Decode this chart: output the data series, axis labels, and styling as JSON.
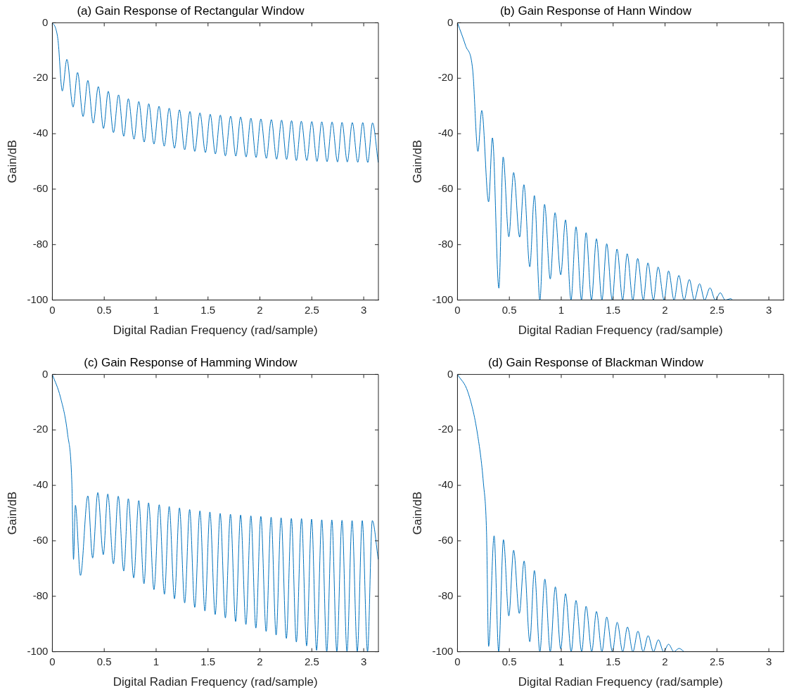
{
  "chart_data": [
    {
      "type": "line",
      "title": "(a) Gain Response of Rectangular Window",
      "xlabel": "Digital Radian Frequency (rad/sample)",
      "ylabel": "Gain/dB",
      "xlim": [
        0,
        3.1416
      ],
      "ylim": [
        -100,
        0
      ],
      "xticks": [
        0,
        0.5,
        1,
        1.5,
        2,
        2.5,
        3
      ],
      "yticks": [
        -100,
        -80,
        -60,
        -40,
        -20,
        0
      ],
      "x": [
        0,
        0.032,
        0.055,
        0.096,
        0.14,
        0.2,
        0.243,
        0.296,
        0.342,
        0.394,
        0.443,
        0.493,
        0.539,
        0.589,
        0.638,
        0.688,
        0.732,
        0.787,
        0.833,
        0.885,
        0.929,
        0.979,
        1.028,
        1.078,
        1.126,
        1.177,
        1.225,
        1.275,
        1.326,
        1.372,
        1.422,
        1.475,
        1.521,
        1.571,
        1.619,
        1.667,
        1.718,
        1.768,
        1.814,
        1.867,
        1.913,
        1.963,
        2.009,
        2.062,
        2.11,
        2.161,
        2.209,
        2.257,
        2.305,
        2.351,
        2.399,
        2.452,
        2.5,
        2.55,
        2.596,
        2.647,
        2.695,
        2.748,
        2.791,
        2.842,
        2.89,
        2.943,
        2.991,
        3.039,
        3.085,
        3.14
      ],
      "series": [
        {
          "color": "#0072bd",
          "values": [
            0,
            -2,
            -6.4,
            -24.6,
            -13.2,
            -30.4,
            -17.9,
            -33.8,
            -20.8,
            -36.2,
            -23.0,
            -38.1,
            -24.7,
            -39.6,
            -26.0,
            -40.9,
            -27.4,
            -42.0,
            -28.4,
            -43.0,
            -29.2,
            -43.7,
            -30.1,
            -44.5,
            -30.8,
            -45.2,
            -31.4,
            -45.8,
            -32.0,
            -46.4,
            -32.5,
            -46.8,
            -33.0,
            -47.3,
            -33.3,
            -48.0,
            -33.7,
            -48.1,
            -34.0,
            -48.4,
            -34.4,
            -48.6,
            -34.7,
            -48.9,
            -34.9,
            -49.2,
            -35.1,
            -49.3,
            -35.3,
            -49.7,
            -35.5,
            -49.7,
            -35.6,
            -50.0,
            -35.7,
            -50.1,
            -35.8,
            -50.2,
            -35.9,
            -50.2,
            -36.0,
            -50.3,
            -36.0,
            -50.4,
            -36.1,
            -50.4
          ]
        }
      ]
    },
    {
      "type": "line",
      "title": "(b) Gain Response of Hann Window",
      "xlabel": "Digital Radian Frequency (rad/sample)",
      "ylabel": "Gain/dB",
      "xlim": [
        0,
        3.1416
      ],
      "ylim": [
        -100,
        0
      ],
      "xticks": [
        0,
        0.5,
        1,
        1.5,
        2,
        2.5,
        3
      ],
      "yticks": [
        -100,
        -80,
        -60,
        -40,
        -20,
        0
      ],
      "x": [
        0,
        0.078,
        0.147,
        0.197,
        0.234,
        0.3,
        0.337,
        0.399,
        0.44,
        0.495,
        0.541,
        0.599,
        0.64,
        0.697,
        0.741,
        0.794,
        0.839,
        0.894,
        0.94,
        0.995,
        1.041,
        1.094,
        1.142,
        1.195,
        1.239,
        1.291,
        1.339,
        1.392,
        1.438,
        1.491,
        1.537,
        1.592,
        1.635,
        1.69,
        1.736,
        1.791,
        1.835,
        1.888,
        1.933,
        1.991,
        2.034,
        2.087,
        2.133,
        2.183,
        2.234,
        2.282,
        2.333,
        2.381,
        2.433,
        2.484,
        2.532,
        2.58,
        2.635,
        2.651
      ],
      "series": [
        {
          "color": "#0072bd",
          "values": [
            0,
            -8.2,
            -17.1,
            -46.4,
            -31.6,
            -64.6,
            -41.5,
            -95.7,
            -48.4,
            -77.2,
            -54.0,
            -77.3,
            -58.4,
            -88.0,
            -62.3,
            -100,
            -65.5,
            -92.4,
            -68.5,
            -90.9,
            -71.1,
            -100,
            -73.6,
            -100,
            -75.7,
            -100,
            -77.9,
            -100,
            -79.7,
            -100,
            -81.6,
            -100,
            -83.3,
            -100,
            -85.0,
            -100,
            -86.6,
            -100,
            -88.1,
            -100,
            -89.5,
            -100,
            -91.1,
            -100,
            -92.6,
            -100,
            -94.1,
            -100,
            -95.6,
            -100,
            -97.4,
            -100,
            -99.5,
            -100
          ]
        }
      ]
    },
    {
      "type": "line",
      "title": "(c) Gain Response of Hamming Window",
      "xlabel": "Digital Radian Frequency (rad/sample)",
      "ylabel": "Gain/dB",
      "xlim": [
        0,
        3.1416
      ],
      "ylim": [
        -100,
        0
      ],
      "xticks": [
        0,
        0.5,
        1,
        1.5,
        2,
        2.5,
        3
      ],
      "yticks": [
        -100,
        -80,
        -60,
        -40,
        -20,
        0
      ],
      "x": [
        0,
        0.078,
        0.147,
        0.188,
        0.204,
        0.222,
        0.271,
        0.342,
        0.388,
        0.438,
        0.491,
        0.534,
        0.589,
        0.635,
        0.688,
        0.732,
        0.784,
        0.833,
        0.883,
        0.927,
        0.979,
        1.03,
        1.08,
        1.126,
        1.177,
        1.225,
        1.275,
        1.323,
        1.372,
        1.422,
        1.47,
        1.518,
        1.569,
        1.617,
        1.667,
        1.716,
        1.766,
        1.814,
        1.865,
        1.913,
        1.961,
        2.009,
        2.06,
        2.108,
        2.156,
        2.204,
        2.255,
        2.303,
        2.351,
        2.401,
        2.45,
        2.498,
        2.546,
        2.596,
        2.644,
        2.693,
        2.741,
        2.791,
        2.839,
        2.888,
        2.938,
        2.986,
        3.037,
        3.083,
        3.14
      ],
      "series": [
        {
          "color": "#0072bd",
          "values": [
            0,
            -8.2,
            -21.5,
            -39.2,
            -66.7,
            -47.2,
            -72.5,
            -43.8,
            -66.2,
            -42.6,
            -65.0,
            -43.1,
            -68.3,
            -43.9,
            -70.9,
            -44.8,
            -73.4,
            -45.5,
            -75.5,
            -46.3,
            -77.6,
            -47.0,
            -79.3,
            -47.6,
            -80.9,
            -48.1,
            -82.4,
            -48.7,
            -84.0,
            -49.2,
            -85.3,
            -49.6,
            -86.6,
            -50.1,
            -87.8,
            -50.4,
            -89.1,
            -50.7,
            -90.2,
            -51.0,
            -91.5,
            -51.2,
            -92.7,
            -51.5,
            -94.0,
            -51.7,
            -95.2,
            -51.9,
            -96.5,
            -52.0,
            -97.9,
            -52.2,
            -99.5,
            -52.4,
            -100,
            -52.5,
            -100,
            -52.6,
            -100,
            -52.7,
            -100,
            -52.7,
            -100,
            -52.7,
            -66.7
          ]
        }
      ]
    },
    {
      "type": "line",
      "title": "(d) Gain Response of Blackman Window",
      "xlabel": "Digital Radian Frequency (rad/sample)",
      "ylabel": "Gain/dB",
      "xlim": [
        0,
        3.1416
      ],
      "ylim": [
        -100,
        0
      ],
      "xticks": [
        0,
        0.5,
        1,
        1.5,
        2,
        2.5,
        3
      ],
      "yticks": [
        -100,
        -80,
        -60,
        -40,
        -20,
        0
      ],
      "x": [
        0,
        0.101,
        0.193,
        0.25,
        0.28,
        0.3,
        0.353,
        0.397,
        0.443,
        0.495,
        0.541,
        0.596,
        0.642,
        0.697,
        0.741,
        0.794,
        0.842,
        0.894,
        0.943,
        0.995,
        1.041,
        1.096,
        1.142,
        1.197,
        1.239,
        1.294,
        1.339,
        1.392,
        1.438,
        1.493,
        1.539,
        1.592,
        1.638,
        1.69,
        1.739,
        1.789,
        1.837,
        1.888,
        1.936,
        1.986,
        2.034,
        2.085,
        2.135,
        2.183
      ],
      "series": [
        {
          "color": "#0072bd",
          "values": [
            0,
            -6.4,
            -21.5,
            -39.2,
            -56.9,
            -98.1,
            -58.2,
            -100,
            -59.6,
            -87.1,
            -63.4,
            -86.2,
            -67.3,
            -96.4,
            -70.7,
            -100,
            -73.8,
            -100,
            -76.6,
            -99.0,
            -79.1,
            -100,
            -81.5,
            -100,
            -83.6,
            -100,
            -85.5,
            -100,
            -87.5,
            -100,
            -89.4,
            -100,
            -91.1,
            -100,
            -92.6,
            -100,
            -94.2,
            -100,
            -95.7,
            -100,
            -97.3,
            -100,
            -98.8,
            -100
          ]
        }
      ]
    }
  ]
}
